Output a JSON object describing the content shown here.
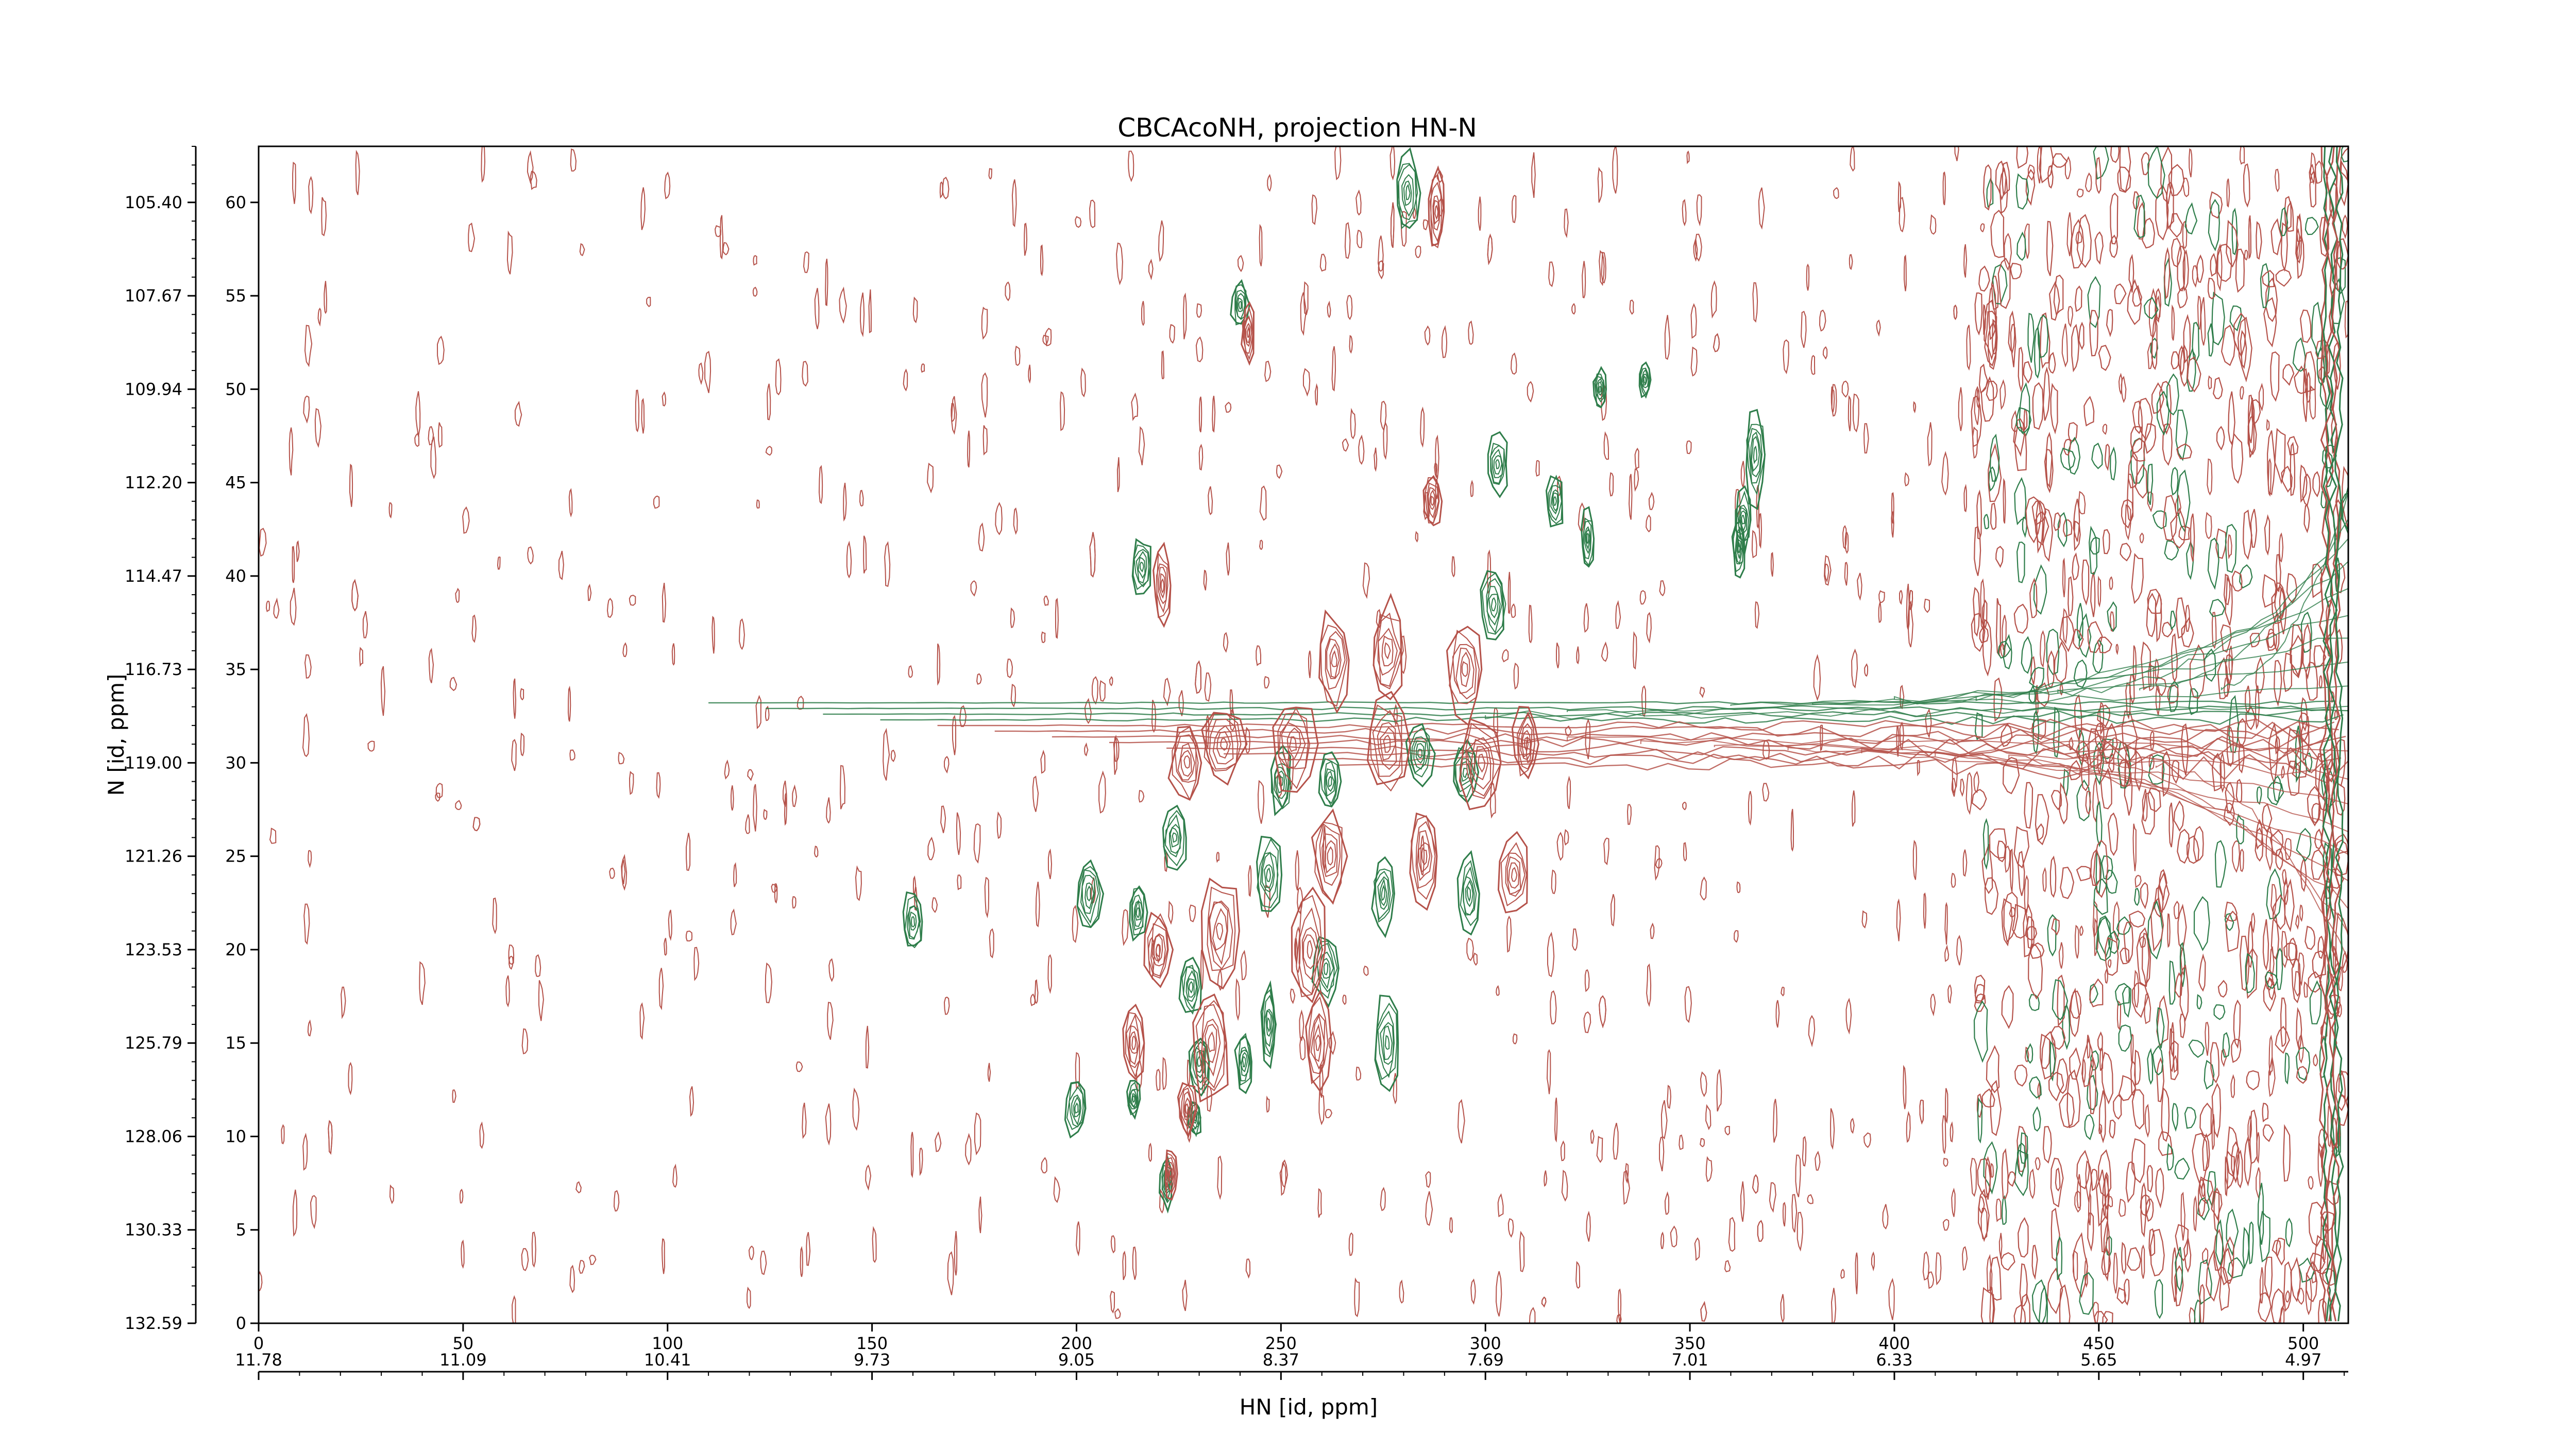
{
  "chart_data": {
    "type": "contour",
    "title": "CBCAcoNH, projection HN-N",
    "xlabel": "HN [id, ppm]",
    "ylabel": "N [id, ppm]",
    "x_index_range": [
      0,
      511
    ],
    "y_index_range": [
      0,
      63
    ],
    "x_index_ticks": [
      "0",
      "50",
      "100",
      "150",
      "200",
      "250",
      "300",
      "350",
      "400",
      "450",
      "500"
    ],
    "y_index_ticks": [
      "0",
      "5",
      "10",
      "15",
      "20",
      "25",
      "30",
      "35",
      "40",
      "45",
      "50",
      "55",
      "60"
    ],
    "x_ppm_ticks": [
      "11.78",
      "11.09",
      "10.41",
      "9.73",
      "9.05",
      "8.37",
      "7.69",
      "7.01",
      "6.33",
      "5.65",
      "4.97"
    ],
    "y_ppm_ticks": [
      "132.59",
      "130.33",
      "128.06",
      "125.79",
      "123.53",
      "121.26",
      "119.00",
      "116.73",
      "114.47",
      "112.20",
      "109.94",
      "107.67",
      "105.40"
    ],
    "series": [
      {
        "sign": "positive",
        "color": "#2e7d4a",
        "peaks": [
          {
            "x": 281,
            "y": 60.5,
            "w": 6,
            "h": 4.5
          },
          {
            "x": 240,
            "y": 54.5,
            "w": 4,
            "h": 2.5
          },
          {
            "x": 339,
            "y": 50.5,
            "w": 3,
            "h": 2
          },
          {
            "x": 328,
            "y": 50,
            "w": 3,
            "h": 2
          },
          {
            "x": 366,
            "y": 46.5,
            "w": 5,
            "h": 5
          },
          {
            "x": 363,
            "y": 43,
            "w": 4,
            "h": 3
          },
          {
            "x": 303,
            "y": 46,
            "w": 5,
            "h": 3
          },
          {
            "x": 317,
            "y": 44,
            "w": 4,
            "h": 3
          },
          {
            "x": 325,
            "y": 42,
            "w": 3,
            "h": 3
          },
          {
            "x": 362,
            "y": 41.5,
            "w": 3,
            "h": 3
          },
          {
            "x": 216,
            "y": 40.5,
            "w": 5,
            "h": 3
          },
          {
            "x": 302,
            "y": 38.5,
            "w": 6,
            "h": 4
          },
          {
            "x": 284,
            "y": 30.5,
            "w": 6,
            "h": 3
          },
          {
            "x": 250,
            "y": 29,
            "w": 5,
            "h": 3.5
          },
          {
            "x": 262,
            "y": 29,
            "w": 5,
            "h": 3
          },
          {
            "x": 295,
            "y": 29.5,
            "w": 6,
            "h": 3
          },
          {
            "x": 224,
            "y": 26,
            "w": 6,
            "h": 3
          },
          {
            "x": 247,
            "y": 24,
            "w": 6,
            "h": 4
          },
          {
            "x": 203,
            "y": 23,
            "w": 6,
            "h": 4
          },
          {
            "x": 160,
            "y": 21.5,
            "w": 5,
            "h": 3
          },
          {
            "x": 275,
            "y": 23,
            "w": 5,
            "h": 4
          },
          {
            "x": 296,
            "y": 23,
            "w": 5,
            "h": 4
          },
          {
            "x": 215,
            "y": 22,
            "w": 4,
            "h": 3
          },
          {
            "x": 228,
            "y": 18,
            "w": 5,
            "h": 3
          },
          {
            "x": 261,
            "y": 19,
            "w": 6,
            "h": 3.5
          },
          {
            "x": 276,
            "y": 15,
            "w": 6,
            "h": 5
          },
          {
            "x": 247,
            "y": 16,
            "w": 4,
            "h": 4
          },
          {
            "x": 230,
            "y": 14,
            "w": 5,
            "h": 3
          },
          {
            "x": 241,
            "y": 14,
            "w": 4,
            "h": 3
          },
          {
            "x": 200,
            "y": 11.5,
            "w": 5,
            "h": 3
          },
          {
            "x": 214,
            "y": 12,
            "w": 3,
            "h": 2
          },
          {
            "x": 229,
            "y": 11,
            "w": 3,
            "h": 2
          },
          {
            "x": 222,
            "y": 7.5,
            "w": 3,
            "h": 2.5
          }
        ]
      },
      {
        "sign": "negative",
        "color": "#b5524a",
        "peaks": [
          {
            "x": 288,
            "y": 59.5,
            "w": 4,
            "h": 4
          },
          {
            "x": 242,
            "y": 53,
            "w": 3,
            "h": 3
          },
          {
            "x": 287,
            "y": 44,
            "w": 4,
            "h": 3
          },
          {
            "x": 221,
            "y": 39.5,
            "w": 4,
            "h": 4
          },
          {
            "x": 276,
            "y": 36,
            "w": 8,
            "h": 5
          },
          {
            "x": 295,
            "y": 35,
            "w": 8,
            "h": 5
          },
          {
            "x": 263,
            "y": 35.5,
            "w": 7,
            "h": 5
          },
          {
            "x": 276,
            "y": 31,
            "w": 10,
            "h": 5
          },
          {
            "x": 253,
            "y": 31,
            "w": 10,
            "h": 5
          },
          {
            "x": 236,
            "y": 31,
            "w": 10,
            "h": 4
          },
          {
            "x": 299,
            "y": 30,
            "w": 10,
            "h": 5
          },
          {
            "x": 227,
            "y": 30,
            "w": 8,
            "h": 4
          },
          {
            "x": 310,
            "y": 31,
            "w": 6,
            "h": 4
          },
          {
            "x": 285,
            "y": 25,
            "w": 7,
            "h": 5
          },
          {
            "x": 262,
            "y": 25,
            "w": 8,
            "h": 5
          },
          {
            "x": 307,
            "y": 24,
            "w": 7,
            "h": 4
          },
          {
            "x": 235,
            "y": 21,
            "w": 9,
            "h": 6
          },
          {
            "x": 257,
            "y": 20,
            "w": 8,
            "h": 6
          },
          {
            "x": 220,
            "y": 20,
            "w": 6,
            "h": 4
          },
          {
            "x": 233,
            "y": 15,
            "w": 9,
            "h": 6
          },
          {
            "x": 259,
            "y": 15,
            "w": 6,
            "h": 5
          },
          {
            "x": 214,
            "y": 15,
            "w": 5,
            "h": 4
          },
          {
            "x": 227,
            "y": 11.5,
            "w": 4,
            "h": 3
          },
          {
            "x": 223,
            "y": 8,
            "w": 3,
            "h": 2.5
          }
        ]
      }
    ],
    "water_ridge_y": 32,
    "grid": false,
    "legend": "none"
  }
}
